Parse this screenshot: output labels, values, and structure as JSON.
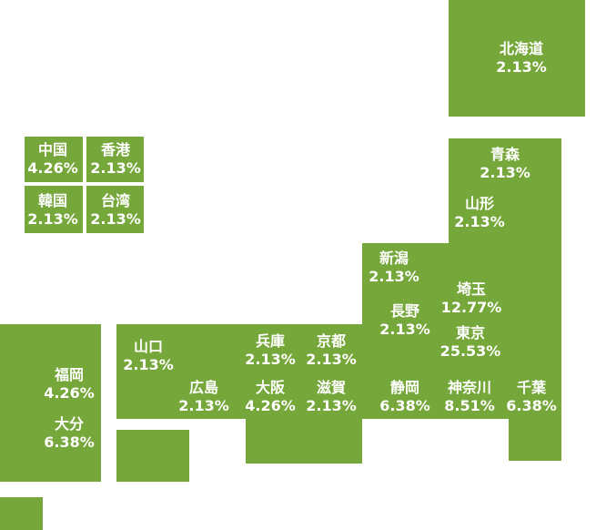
{
  "colors": {
    "region_fill": "#76a73a",
    "label_text": "#ffffff",
    "background": "#ffffff"
  },
  "regions": {
    "hokkaido": {
      "name": "北海道",
      "value": "2.13%"
    },
    "china": {
      "name": "中国",
      "value": "4.26%"
    },
    "hongkong": {
      "name": "香港",
      "value": "2.13%"
    },
    "korea": {
      "name": "韓国",
      "value": "2.13%"
    },
    "taiwan": {
      "name": "台湾",
      "value": "2.13%"
    },
    "aomori": {
      "name": "青森",
      "value": "2.13%"
    },
    "yamagata": {
      "name": "山形",
      "value": "2.13%"
    },
    "niigata": {
      "name": "新潟",
      "value": "2.13%"
    },
    "saitama": {
      "name": "埼玉",
      "value": "12.77%"
    },
    "nagano": {
      "name": "長野",
      "value": "2.13%"
    },
    "tokyo": {
      "name": "東京",
      "value": "25.53%"
    },
    "hyogo": {
      "name": "兵庫",
      "value": "2.13%"
    },
    "kyoto": {
      "name": "京都",
      "value": "2.13%"
    },
    "yamaguchi": {
      "name": "山口",
      "value": "2.13%"
    },
    "fukuoka": {
      "name": "福岡",
      "value": "4.26%"
    },
    "hiroshima": {
      "name": "広島",
      "value": "2.13%"
    },
    "osaka": {
      "name": "大阪",
      "value": "4.26%"
    },
    "shiga": {
      "name": "滋賀",
      "value": "2.13%"
    },
    "shizuoka": {
      "name": "静岡",
      "value": "6.38%"
    },
    "kanagawa": {
      "name": "神奈川",
      "value": "8.51%"
    },
    "chiba": {
      "name": "千葉",
      "value": "6.38%"
    },
    "oita": {
      "name": "大分",
      "value": "6.38%"
    }
  }
}
